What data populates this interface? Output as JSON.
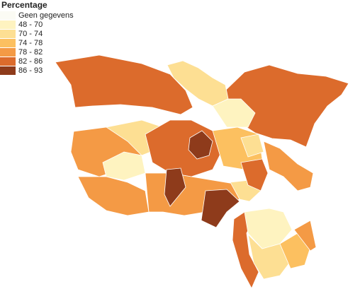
{
  "legend": {
    "title": "Percentage",
    "items": [
      {
        "label": "Geen gegevens",
        "color": "#fbfbf4"
      },
      {
        "label": "48 - 70",
        "color": "#fef3c0"
      },
      {
        "label": "70 - 74",
        "color": "#fddf93"
      },
      {
        "label": "74 - 78",
        "color": "#fcc060"
      },
      {
        "label": "78 - 82",
        "color": "#f49a45"
      },
      {
        "label": "82 - 86",
        "color": "#dc6b2c"
      },
      {
        "label": "86 - 93",
        "color": "#8e3b1b"
      }
    ]
  }
}
